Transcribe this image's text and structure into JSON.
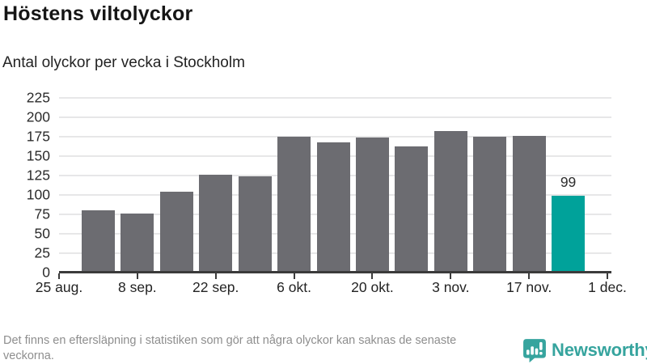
{
  "header": {
    "title": "Höstens viltolyckor",
    "subtitle": "Antal olyckor per vecka i Stockholm"
  },
  "chart_data": {
    "type": "bar",
    "title": "Höstens viltolyckor",
    "subtitle": "Antal olyckor per vecka i Stockholm",
    "values": [
      80,
      76,
      104,
      126,
      124,
      175,
      168,
      174,
      162,
      182,
      175,
      176,
      99
    ],
    "bar_week_positions": [
      1,
      2,
      3,
      4,
      5,
      6,
      7,
      8,
      9,
      10,
      11,
      12,
      13
    ],
    "x_tick_labels": [
      "25 aug.",
      "8 sep.",
      "22 sep.",
      "6 okt.",
      "20 okt.",
      "3 nov.",
      "17 nov.",
      "1 dec."
    ],
    "x_tick_week_positions": [
      0,
      2,
      4,
      6,
      8,
      10,
      12,
      14
    ],
    "y_ticks": [
      0,
      25,
      50,
      75,
      100,
      125,
      150,
      175,
      200,
      225
    ],
    "ylim": [
      0,
      225
    ],
    "grid": true,
    "legend": "none",
    "bar_color": "#6c6c71",
    "highlight_color": "#00a29a",
    "highlight_index": 12,
    "value_labels": [
      {
        "index": 12,
        "text": "99"
      }
    ]
  },
  "colors": {
    "axis": "#3b3b3b",
    "gridline": "#e7e7e8",
    "tick_text": "#2b2b2b",
    "muted_text": "#8e8e8e",
    "brand_teal": "#36a49e"
  },
  "footer": {
    "note": "Det finns en eftersläpning i statistiken som gör att några olyckor kan saknas de senaste veckorna.",
    "brand": "Newsworthy"
  },
  "icons": {
    "brand_logo": "newsworthy-speech-bubble-barchart-icon"
  }
}
